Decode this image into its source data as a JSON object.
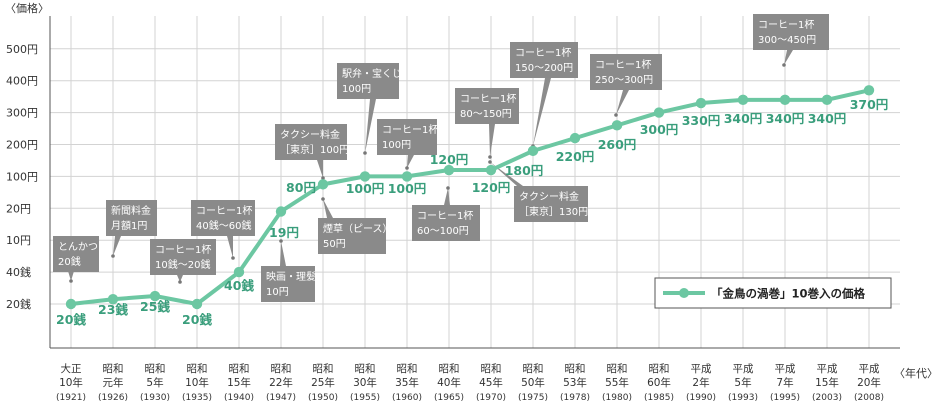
{
  "chart_data": {
    "type": "line",
    "y_unit_label": "〈価格〉",
    "x_unit_label": "〈年代〉",
    "y_ticks": [
      "20銭",
      "40銭",
      "10円",
      "20円",
      "100円",
      "200円",
      "300円",
      "400円",
      "500円"
    ],
    "categories": [
      {
        "era": "大正",
        "year": "10年",
        "ad": "(1921)"
      },
      {
        "era": "昭和",
        "year": "元年",
        "ad": "(1926)"
      },
      {
        "era": "昭和",
        "year": "5年",
        "ad": "(1930)"
      },
      {
        "era": "昭和",
        "year": "10年",
        "ad": "(1935)"
      },
      {
        "era": "昭和",
        "year": "15年",
        "ad": "(1940)"
      },
      {
        "era": "昭和",
        "year": "22年",
        "ad": "(1947)"
      },
      {
        "era": "昭和",
        "year": "25年",
        "ad": "(1950)"
      },
      {
        "era": "昭和",
        "year": "30年",
        "ad": "(1955)"
      },
      {
        "era": "昭和",
        "year": "35年",
        "ad": "(1960)"
      },
      {
        "era": "昭和",
        "year": "40年",
        "ad": "(1965)"
      },
      {
        "era": "昭和",
        "year": "45年",
        "ad": "(1970)"
      },
      {
        "era": "昭和",
        "year": "50年",
        "ad": "(1975)"
      },
      {
        "era": "昭和",
        "year": "53年",
        "ad": "(1978)"
      },
      {
        "era": "昭和",
        "year": "55年",
        "ad": "(1980)"
      },
      {
        "era": "昭和",
        "year": "60年",
        "ad": "(1985)"
      },
      {
        "era": "平成",
        "year": "2年",
        "ad": "(1990)"
      },
      {
        "era": "平成",
        "year": "5年",
        "ad": "(1993)"
      },
      {
        "era": "平成",
        "year": "7年",
        "ad": "(1995)"
      },
      {
        "era": "平成",
        "year": "15年",
        "ad": "(2003)"
      },
      {
        "era": "平成",
        "year": "20年",
        "ad": "(2008)"
      }
    ],
    "series": [
      {
        "name": "「金鳥の渦巻」10巻入の価格",
        "color": "#6cc7a2",
        "label_color": "#3a9e7c",
        "values_yen": [
          0.2,
          0.23,
          0.25,
          0.2,
          0.4,
          19,
          80,
          100,
          100,
          120,
          120,
          180,
          220,
          260,
          300,
          330,
          340,
          340,
          340,
          370
        ],
        "labels": [
          "20銭",
          "23銭",
          "25銭",
          "20銭",
          "40銭",
          "19円",
          "80円",
          "100円",
          "100円",
          "120円",
          "120円",
          "180円",
          "220円",
          "260円",
          "300円",
          "330円",
          "340円",
          "340円",
          "340円",
          "370円"
        ]
      }
    ],
    "annotations": [
      {
        "lines": [
          "とんかつ",
          "20銭"
        ]
      },
      {
        "lines": [
          "新聞料金",
          "月額1円"
        ]
      },
      {
        "lines": [
          "コーヒー1杯",
          "10銭〜20銭"
        ]
      },
      {
        "lines": [
          "コーヒー1杯",
          "40銭〜60銭"
        ]
      },
      {
        "lines": [
          "映画・理髪",
          "10円"
        ]
      },
      {
        "lines": [
          "タクシー料金",
          "［東京］100円"
        ]
      },
      {
        "lines": [
          "煙草（ピース）",
          "50円"
        ]
      },
      {
        "lines": [
          "駅弁・宝くじ",
          "100円"
        ]
      },
      {
        "lines": [
          "コーヒー1杯",
          "100円"
        ]
      },
      {
        "lines": [
          "コーヒー1杯",
          "60〜100円"
        ]
      },
      {
        "lines": [
          "コーヒー1杯",
          "80〜150円"
        ]
      },
      {
        "lines": [
          "タクシー料金",
          "［東京］130円"
        ]
      },
      {
        "lines": [
          "コーヒー1杯",
          "150〜200円"
        ]
      },
      {
        "lines": [
          "コーヒー1杯",
          "250〜300円"
        ]
      },
      {
        "lines": [
          "コーヒー1杯",
          "300〜450円"
        ]
      }
    ],
    "colors": {
      "line": "#6cc7a2",
      "label": "#3a9e7c",
      "annotation_box": "#888888",
      "grid": "#cccccc"
    },
    "grid": true,
    "legend_position": "right"
  }
}
